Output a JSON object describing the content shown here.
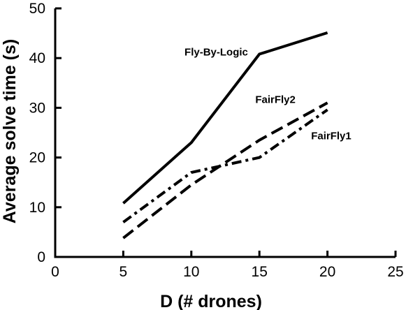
{
  "chart_data": {
    "type": "line",
    "title": "",
    "xlabel": "D (# drones)",
    "ylabel": "Average solve time (s)",
    "xlim": [
      0,
      25
    ],
    "ylim": [
      0,
      50
    ],
    "xticks": [
      0,
      5,
      10,
      15,
      20,
      25
    ],
    "yticks": [
      0,
      10,
      20,
      30,
      40,
      50
    ],
    "x": [
      5,
      10,
      15,
      20
    ],
    "grid": false,
    "legend": "none (series labeled inline)",
    "series": [
      {
        "name": "Fly-By-Logic",
        "values": [
          10.8,
          23.0,
          40.8,
          45.1
        ],
        "style": "solid",
        "color": "#000000",
        "label_anchor": [
          9.5,
          40.5
        ]
      },
      {
        "name": "FairFly2",
        "values": [
          3.8,
          14.5,
          23.5,
          31.0
        ],
        "style": "dashed",
        "color": "#000000",
        "label_anchor": [
          14.7,
          31.0
        ]
      },
      {
        "name": "FairFly1",
        "values": [
          7.0,
          17.0,
          20.0,
          29.6
        ],
        "style": "dash-dot",
        "color": "#000000",
        "label_anchor": [
          18.8,
          23.7
        ]
      }
    ]
  }
}
